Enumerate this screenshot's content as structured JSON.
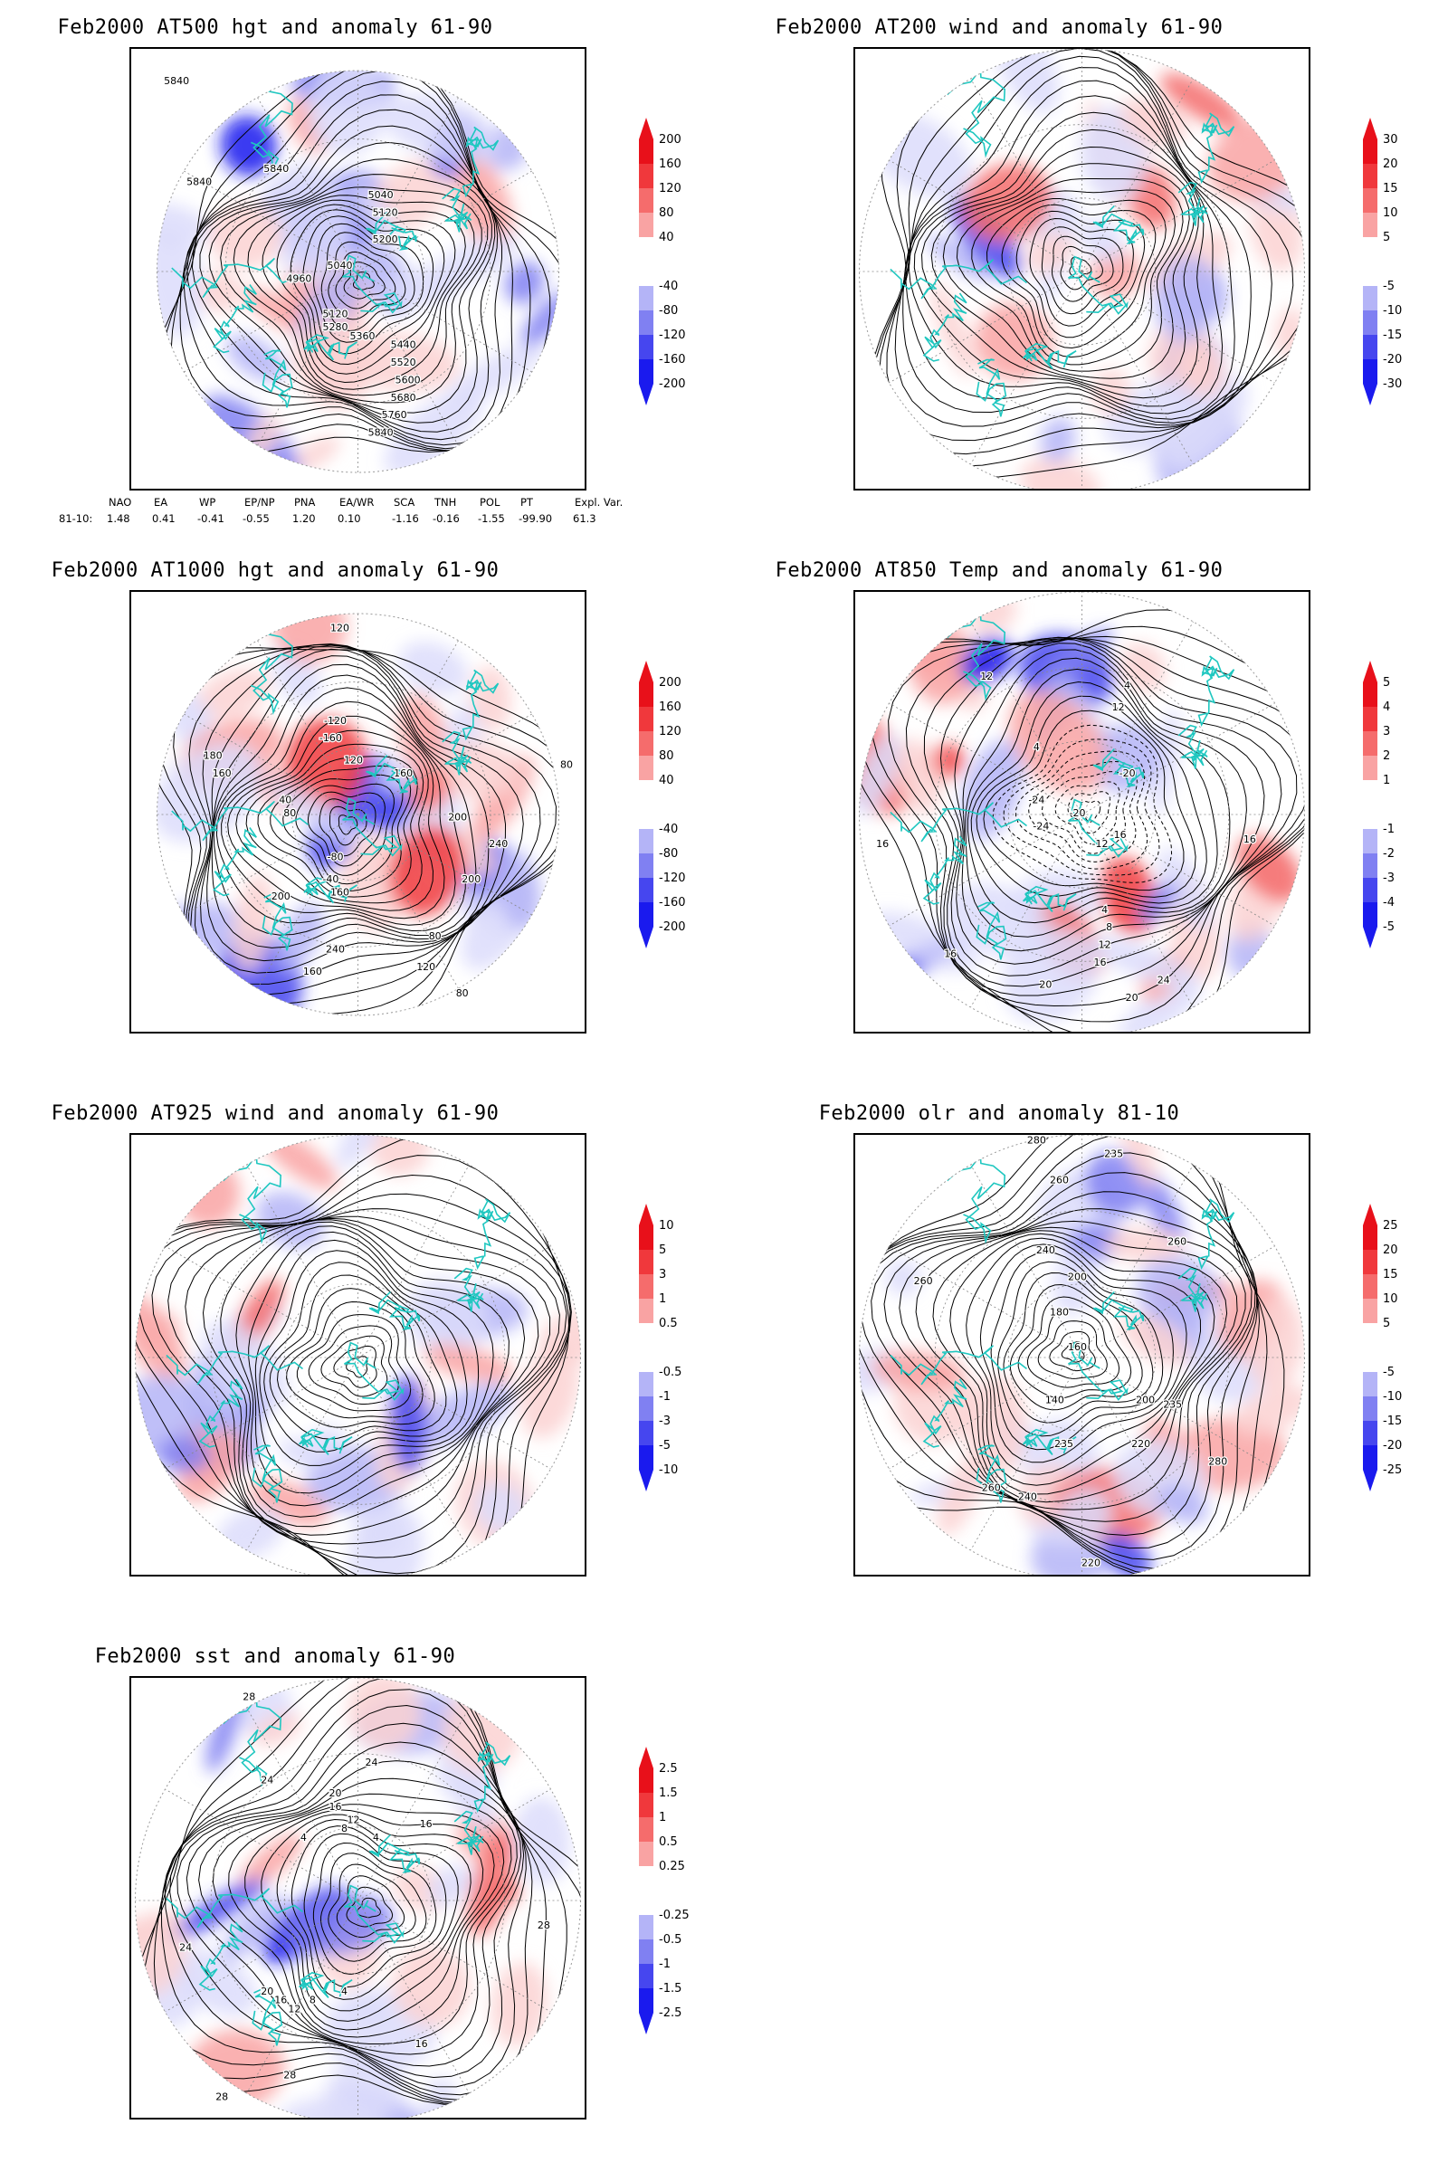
{
  "panels": [
    {
      "id": "hgt500",
      "title": "Feb2000 AT500 hgt and anomaly 61-90",
      "colorbar": [
        "200",
        "160",
        "120",
        "80",
        "40",
        "-40",
        "-80",
        "-120",
        "-160",
        "-200"
      ],
      "contour_labels": [
        "5840",
        "5840",
        "5840",
        "5040",
        "5120",
        "5200",
        "5040",
        "4960",
        "5120",
        "5280",
        "5360",
        "5440",
        "5520",
        "5600",
        "5680",
        "5760",
        "5840"
      ],
      "stats": {
        "row_label": "81-10:",
        "headers": [
          "NAO",
          "EA",
          "WP",
          "EP/NP",
          "PNA",
          "EA/WR",
          "SCA",
          "TNH",
          "POL",
          "PT",
          "Expl. Var."
        ],
        "values": [
          "1.48",
          "0.41",
          "-0.41",
          "-0.55",
          "1.20",
          "0.10",
          "-1.16",
          "-0.16",
          "-1.55",
          "-99.90",
          "61.3"
        ]
      }
    },
    {
      "id": "wind200",
      "title": "Feb2000 AT200 wind and anomaly 61-90",
      "colorbar": [
        "30",
        "20",
        "15",
        "10",
        "5",
        "-5",
        "-10",
        "-15",
        "-20",
        "-30"
      ],
      "contour_labels": []
    },
    {
      "id": "hgt1000",
      "title": "Feb2000 AT1000 hgt and anomaly 61-90",
      "colorbar": [
        "200",
        "160",
        "120",
        "80",
        "40",
        "-40",
        "-80",
        "-120",
        "-160",
        "-200"
      ],
      "contour_labels": [
        "120",
        "-120",
        "-160",
        "120",
        "160",
        "180",
        "160",
        "40",
        "80",
        "200",
        "240",
        "-80",
        "-40",
        "160",
        "200",
        "240",
        "200",
        "120",
        "160",
        "80",
        "80",
        "80"
      ]
    },
    {
      "id": "temp850",
      "title": "Feb2000 AT850 Temp and anomaly 61-90",
      "colorbar": [
        "5",
        "4",
        "3",
        "2",
        "1",
        "-1",
        "-2",
        "-3",
        "-4",
        "-5"
      ],
      "contour_labels": [
        "12",
        "4",
        "12",
        "4",
        "-20",
        "-24",
        "-20",
        "-24",
        "-16",
        "-12",
        "16",
        "4",
        "8",
        "12",
        "16",
        "20",
        "24",
        "20",
        "16",
        "16"
      ]
    },
    {
      "id": "wind925",
      "title": "Feb2000 AT925 wind and anomaly 61-90",
      "colorbar": [
        "10",
        "5",
        "3",
        "1",
        "0.5",
        "-0.5",
        "-1",
        "-3",
        "-5",
        "-10"
      ],
      "contour_labels": []
    },
    {
      "id": "olr",
      "title": "Feb2000 olr and anomaly 81-10",
      "colorbar": [
        "25",
        "20",
        "15",
        "10",
        "5",
        "-5",
        "-10",
        "-15",
        "-20",
        "-25"
      ],
      "contour_labels": [
        "280",
        "235",
        "260",
        "260",
        "240",
        "200",
        "180",
        "160",
        "140",
        "235",
        "200",
        "260",
        "235",
        "220",
        "280",
        "260",
        "240",
        "220"
      ]
    },
    {
      "id": "sst",
      "title": "Feb2000 sst and anomaly 61-90",
      "colorbar": [
        "2.5",
        "1.5",
        "1",
        "0.5",
        "0.25",
        "-0.25",
        "-0.5",
        "-1",
        "-1.5",
        "-2.5"
      ],
      "contour_labels": [
        "28",
        "24",
        "24",
        "20",
        "16",
        "12",
        "8",
        "4",
        "4",
        "16",
        "28",
        "24",
        "20",
        "16",
        "12",
        "8",
        "4",
        "16",
        "28",
        "28"
      ]
    }
  ],
  "colors": {
    "reds": [
      "#e8101a",
      "#f0383c",
      "#f56c6c",
      "#f9a3a3",
      "#fcd2d2"
    ],
    "blues": [
      "#dcdcfb",
      "#b4b4f7",
      "#8080f2",
      "#4646ef",
      "#1a1aee"
    ],
    "coast": "#1fc7c0"
  }
}
